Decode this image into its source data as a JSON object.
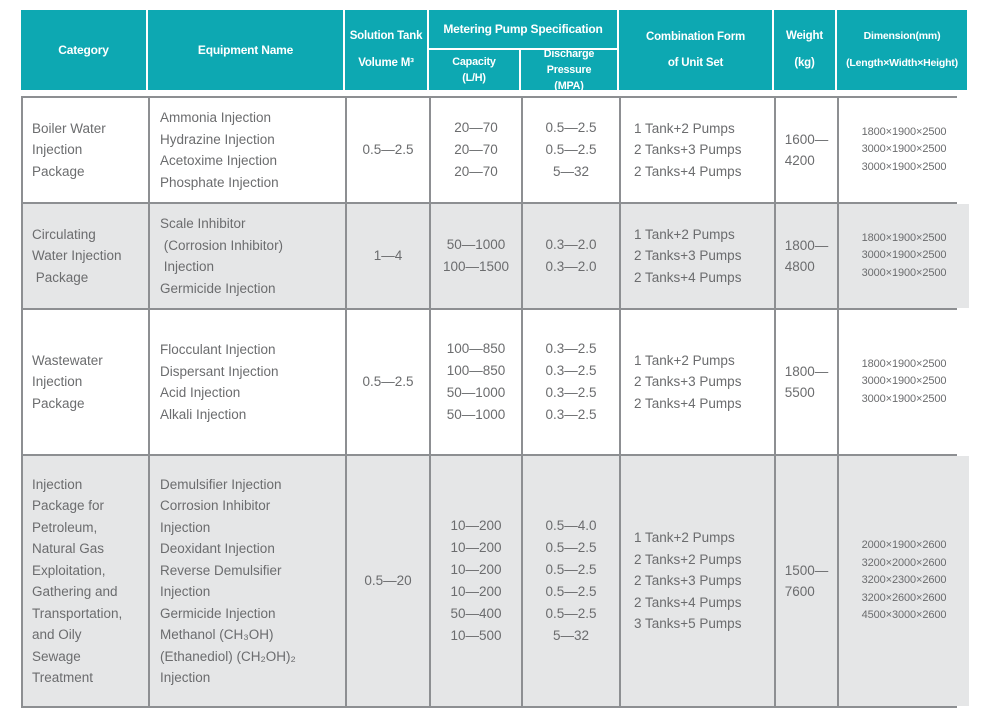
{
  "colors": {
    "header_teal": "#0da8b2",
    "header_text": "#ffffff",
    "row_alt_bg": "#e5e6e7",
    "border_gray": "#8d8f92",
    "body_text": "#6b6c6e"
  },
  "header": {
    "category": "Category",
    "equipment": "Equipment Name",
    "solution_tank": [
      "Solution Tank",
      "Volume M³"
    ],
    "metering": "Metering Pump Specification",
    "capacity": [
      "Capacity",
      "(L/H)"
    ],
    "discharge": [
      "Discharge Pressure",
      "(MPA)"
    ],
    "combination": [
      "Combination Form",
      "of Unit Set"
    ],
    "weight": [
      "Weight",
      "(kg)"
    ],
    "dimension": [
      "Dimension(mm)",
      "(Length×Width×Height)"
    ]
  },
  "rows": [
    {
      "category": [
        "Boiler Water",
        "Injection",
        "Package"
      ],
      "equipment": [
        "Ammonia Injection",
        "Hydrazine Injection",
        "Acetoxime Injection",
        "Phosphate Injection"
      ],
      "volume": "0.5—2.5",
      "capacity": [
        "20—70",
        "20—70",
        "20—70"
      ],
      "discharge": [
        "0.5—2.5",
        "0.5—2.5",
        "5—32"
      ],
      "combination": [
        "1 Tank+2 Pumps",
        "2 Tanks+3 Pumps",
        "2 Tanks+4 Pumps"
      ],
      "weight": [
        "1600—",
        "4200"
      ],
      "dimension": [
        "1800×1900×2500",
        "3000×1900×2500",
        "3000×1900×2500"
      ]
    },
    {
      "category": [
        "Circulating",
        "Water Injection",
        " Package"
      ],
      "equipment": [
        "Scale Inhibitor",
        " (Corrosion Inhibitor)",
        " Injection",
        "Germicide Injection"
      ],
      "volume": "1—4",
      "capacity": [
        "50—1000",
        "100—1500"
      ],
      "discharge": [
        "0.3—2.0",
        "0.3—2.0"
      ],
      "combination": [
        "1 Tank+2 Pumps",
        "2 Tanks+3 Pumps",
        "2 Tanks+4 Pumps"
      ],
      "weight": [
        "1800—",
        "4800"
      ],
      "dimension": [
        "1800×1900×2500",
        "3000×1900×2500",
        "3000×1900×2500"
      ]
    },
    {
      "category": [
        "Wastewater",
        "Injection",
        "Package"
      ],
      "equipment": [
        "Flocculant Injection",
        "Dispersant Injection",
        "Acid Injection",
        "Alkali Injection"
      ],
      "volume": "0.5—2.5",
      "capacity": [
        "100—850",
        "100—850",
        "50—1000",
        "50—1000"
      ],
      "discharge": [
        "0.3—2.5",
        "0.3—2.5",
        "0.3—2.5",
        "0.3—2.5"
      ],
      "combination": [
        "1 Tank+2 Pumps",
        "2 Tanks+3 Pumps",
        "2 Tanks+4 Pumps"
      ],
      "weight": [
        "1800—",
        "5500"
      ],
      "dimension": [
        "1800×1900×2500",
        "3000×1900×2500",
        "3000×1900×2500"
      ]
    },
    {
      "category": [
        "Injection",
        "Package for",
        "Petroleum,",
        "Natural Gas",
        "Exploitation,",
        "Gathering and",
        "Transportation,",
        "and Oily",
        "Sewage",
        "Treatment"
      ],
      "equipment": [
        "Demulsifier Injection",
        "Corrosion Inhibitor",
        "Injection",
        "Deoxidant Injection",
        "Reverse Demulsifier",
        "Injection",
        "Germicide Injection",
        "Methanol (CH₃OH)",
        "(Ethanediol) (CH₂OH)₂",
        "Injection"
      ],
      "volume": "0.5—20",
      "capacity": [
        "10—200",
        "10—200",
        "10—200",
        "10—200",
        "50—400",
        "10—500"
      ],
      "discharge": [
        "0.5—4.0",
        "0.5—2.5",
        "0.5—2.5",
        "0.5—2.5",
        "0.5—2.5",
        "5—32"
      ],
      "combination": [
        "1 Tank+2 Pumps",
        "2 Tanks+2 Pumps",
        "2 Tanks+3 Pumps",
        "2 Tanks+4 Pumps",
        "3 Tanks+5 Pumps"
      ],
      "weight": [
        "1500—",
        "7600"
      ],
      "dimension": [
        "2000×1900×2600",
        "3200×2000×2600",
        "3200×2300×2600",
        "3200×2600×2600",
        "4500×3000×2600"
      ]
    }
  ]
}
